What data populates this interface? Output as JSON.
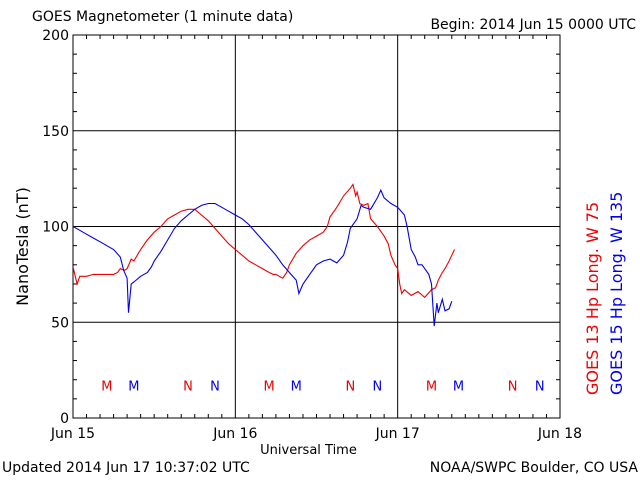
{
  "header": {
    "title": "GOES Magnetometer (1 minute data)",
    "begin": "Begin:  2014 Jun 15 0000 UTC"
  },
  "footer": {
    "updated": "Updated 2014 Jun 17 10:37:02 UTC",
    "source": "NOAA/SWPC Boulder, CO USA"
  },
  "chart_data": {
    "type": "line",
    "title": "GOES Magnetometer (1 minute data)",
    "xlabel": "Universal Time",
    "ylabel": "NanoTesla (nT)",
    "xlim": [
      0,
      72
    ],
    "ylim": [
      0,
      200
    ],
    "x_unit": "hours since 2014 Jun 15 0000 UTC",
    "x_ticks": [
      {
        "x": 0,
        "label": "Jun 15"
      },
      {
        "x": 24,
        "label": "Jun 16"
      },
      {
        "x": 48,
        "label": "Jun 17"
      },
      {
        "x": 72,
        "label": "Jun 18"
      }
    ],
    "y_ticks": [
      0,
      50,
      100,
      150,
      200
    ],
    "grid": true,
    "series": [
      {
        "name": "GOES 13 Hp   Long. W 75",
        "color": "#ee0000",
        "points": [
          [
            0,
            79
          ],
          [
            0.6,
            70
          ],
          [
            1,
            74
          ],
          [
            2,
            74
          ],
          [
            3,
            75
          ],
          [
            4,
            75
          ],
          [
            5,
            75
          ],
          [
            6,
            75
          ],
          [
            6.6,
            76
          ],
          [
            7,
            78
          ],
          [
            7.6,
            77
          ],
          [
            8,
            78
          ],
          [
            8.6,
            83
          ],
          [
            9,
            82
          ],
          [
            10,
            88
          ],
          [
            11,
            93
          ],
          [
            12,
            97
          ],
          [
            13,
            100
          ],
          [
            14,
            104
          ],
          [
            15,
            106
          ],
          [
            16,
            108
          ],
          [
            17,
            109
          ],
          [
            18,
            109
          ],
          [
            19,
            106
          ],
          [
            20,
            103
          ],
          [
            21,
            99
          ],
          [
            22,
            95
          ],
          [
            23,
            91
          ],
          [
            24,
            88
          ],
          [
            25,
            85
          ],
          [
            26,
            82
          ],
          [
            27,
            80
          ],
          [
            28,
            78
          ],
          [
            29,
            76
          ],
          [
            29.6,
            75
          ],
          [
            30,
            75
          ],
          [
            31,
            73
          ],
          [
            31.6,
            76
          ],
          [
            32,
            80
          ],
          [
            33,
            86
          ],
          [
            34,
            90
          ],
          [
            35,
            93
          ],
          [
            36,
            95
          ],
          [
            37,
            97
          ],
          [
            37.6,
            100
          ],
          [
            38,
            105
          ],
          [
            39,
            110
          ],
          [
            40,
            116
          ],
          [
            41,
            120
          ],
          [
            41.4,
            122
          ],
          [
            41.8,
            116
          ],
          [
            42,
            118
          ],
          [
            42.4,
            112
          ],
          [
            43,
            111
          ],
          [
            43.6,
            112
          ],
          [
            44,
            104
          ],
          [
            45,
            100
          ],
          [
            46,
            95
          ],
          [
            46.6,
            91
          ],
          [
            47,
            85
          ],
          [
            47.6,
            80
          ],
          [
            48,
            78
          ],
          [
            48.3,
            70
          ],
          [
            48.6,
            65
          ],
          [
            49,
            67
          ],
          [
            50,
            64
          ],
          [
            51,
            66
          ],
          [
            52,
            63
          ],
          [
            53,
            67
          ],
          [
            53.6,
            68
          ],
          [
            54,
            72
          ],
          [
            54.6,
            76
          ],
          [
            55,
            78
          ],
          [
            55.6,
            82
          ],
          [
            56,
            85
          ],
          [
            56.4,
            88
          ]
        ]
      },
      {
        "name": "GOES 15 Hp   Long. W 135",
        "color": "#0000ee",
        "points": [
          [
            0,
            100
          ],
          [
            1,
            98
          ],
          [
            2,
            96
          ],
          [
            3,
            94
          ],
          [
            4,
            92
          ],
          [
            5,
            90
          ],
          [
            6,
            88
          ],
          [
            7,
            84
          ],
          [
            7.5,
            77
          ],
          [
            8,
            73
          ],
          [
            8.2,
            55
          ],
          [
            8.6,
            70
          ],
          [
            9,
            71
          ],
          [
            10,
            74
          ],
          [
            11,
            76
          ],
          [
            11.6,
            79
          ],
          [
            12,
            82
          ],
          [
            13,
            87
          ],
          [
            14,
            93
          ],
          [
            15,
            99
          ],
          [
            16,
            103
          ],
          [
            17,
            106
          ],
          [
            18,
            109
          ],
          [
            19,
            111
          ],
          [
            20,
            112
          ],
          [
            21,
            112
          ],
          [
            22,
            110
          ],
          [
            23,
            108
          ],
          [
            24,
            106
          ],
          [
            25,
            104
          ],
          [
            26,
            101
          ],
          [
            27,
            97
          ],
          [
            28,
            93
          ],
          [
            29,
            89
          ],
          [
            30,
            85
          ],
          [
            31,
            80
          ],
          [
            32,
            76
          ],
          [
            33,
            72
          ],
          [
            33.4,
            65
          ],
          [
            34,
            70
          ],
          [
            35,
            75
          ],
          [
            36,
            80
          ],
          [
            37,
            82
          ],
          [
            38,
            83
          ],
          [
            39,
            81
          ],
          [
            40,
            85
          ],
          [
            40.6,
            92
          ],
          [
            41,
            99
          ],
          [
            42,
            104
          ],
          [
            42.6,
            111
          ],
          [
            43,
            110
          ],
          [
            44,
            109
          ],
          [
            45,
            115
          ],
          [
            45.5,
            119
          ],
          [
            46,
            115
          ],
          [
            47,
            112
          ],
          [
            48,
            110
          ],
          [
            49,
            106
          ],
          [
            49.4,
            100
          ],
          [
            50,
            88
          ],
          [
            50.6,
            84
          ],
          [
            51,
            80
          ],
          [
            51.6,
            80
          ],
          [
            52,
            78
          ],
          [
            52.6,
            75
          ],
          [
            53,
            70
          ],
          [
            53.4,
            48
          ],
          [
            53.8,
            60
          ],
          [
            54,
            55
          ],
          [
            54.6,
            62
          ],
          [
            55,
            56
          ],
          [
            55.6,
            57
          ],
          [
            56,
            61
          ]
        ]
      }
    ],
    "markers": [
      {
        "x": 5,
        "label": "M",
        "color": "#ee0000"
      },
      {
        "x": 9,
        "label": "M",
        "color": "#0000ee"
      },
      {
        "x": 17,
        "label": "N",
        "color": "#ee0000"
      },
      {
        "x": 21,
        "label": "N",
        "color": "#0000ee"
      },
      {
        "x": 29,
        "label": "M",
        "color": "#ee0000"
      },
      {
        "x": 33,
        "label": "M",
        "color": "#0000ee"
      },
      {
        "x": 41,
        "label": "N",
        "color": "#ee0000"
      },
      {
        "x": 45,
        "label": "N",
        "color": "#0000ee"
      },
      {
        "x": 53,
        "label": "M",
        "color": "#ee0000"
      },
      {
        "x": 57,
        "label": "M",
        "color": "#0000ee"
      },
      {
        "x": 65,
        "label": "N",
        "color": "#ee0000"
      },
      {
        "x": 69,
        "label": "N",
        "color": "#0000ee"
      }
    ],
    "marker_y": 17
  }
}
